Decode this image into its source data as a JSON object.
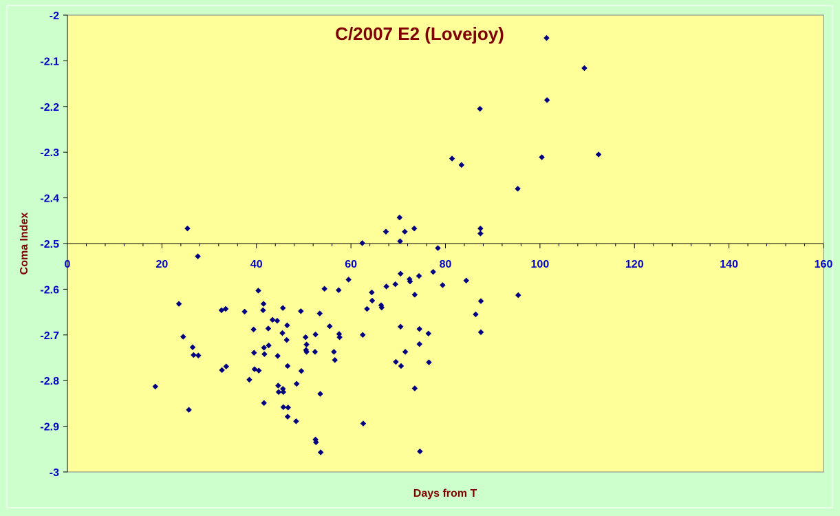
{
  "chart_data": {
    "type": "scatter",
    "title": "C/2007 E2 (Lovejoy)",
    "xlabel": "Days from T",
    "ylabel": "Coma Index",
    "xlim": [
      0,
      160
    ],
    "ylim": [
      -3,
      -2
    ],
    "x_ticks": [
      "0",
      "20",
      "40",
      "60",
      "80",
      "100",
      "120",
      "140",
      "160"
    ],
    "y_ticks": [
      "-2",
      "-2.1",
      "-2.2",
      "-2.3",
      "-2.4",
      "-2.5",
      "-2.6",
      "-2.7",
      "-2.8",
      "-2.9",
      "-3"
    ],
    "x_axis_crosses_at": -2.5,
    "grid": false,
    "legend": "none",
    "colors": {
      "outer_background": "#ccffcc",
      "plot_background": "#ffff99",
      "marker": "#000080",
      "title": "#800000",
      "tick_labels": "#0000cc"
    },
    "points": [
      [
        18.6,
        -2.813
      ],
      [
        23.6,
        -2.632
      ],
      [
        24.5,
        -2.704
      ],
      [
        25.4,
        -2.467
      ],
      [
        25.7,
        -2.864
      ],
      [
        26.5,
        -2.727
      ],
      [
        26.7,
        -2.744
      ],
      [
        27.6,
        -2.528
      ],
      [
        27.7,
        -2.745
      ],
      [
        32.6,
        -2.646
      ],
      [
        32.7,
        -2.777
      ],
      [
        33.5,
        -2.643
      ],
      [
        33.6,
        -2.769
      ],
      [
        37.5,
        -2.649
      ],
      [
        38.5,
        -2.798
      ],
      [
        39.4,
        -2.688
      ],
      [
        39.5,
        -2.739
      ],
      [
        39.6,
        -2.775
      ],
      [
        40.4,
        -2.603
      ],
      [
        40.5,
        -2.778
      ],
      [
        41.4,
        -2.646
      ],
      [
        41.5,
        -2.632
      ],
      [
        41.6,
        -2.728
      ],
      [
        41.7,
        -2.742
      ],
      [
        41.6,
        -2.849
      ],
      [
        42.5,
        -2.686
      ],
      [
        42.6,
        -2.723
      ],
      [
        43.4,
        -2.667
      ],
      [
        44.4,
        -2.669
      ],
      [
        44.5,
        -2.746
      ],
      [
        44.6,
        -2.811
      ],
      [
        44.7,
        -2.825
      ],
      [
        45.5,
        -2.696
      ],
      [
        45.6,
        -2.641
      ],
      [
        45.6,
        -2.818
      ],
      [
        45.7,
        -2.825
      ],
      [
        45.7,
        -2.858
      ],
      [
        46.4,
        -2.711
      ],
      [
        46.5,
        -2.679
      ],
      [
        46.6,
        -2.768
      ],
      [
        46.6,
        -2.879
      ],
      [
        46.7,
        -2.859
      ],
      [
        48.4,
        -2.889
      ],
      [
        48.5,
        -2.807
      ],
      [
        49.4,
        -2.648
      ],
      [
        49.5,
        -2.779
      ],
      [
        50.4,
        -2.705
      ],
      [
        50.5,
        -2.733
      ],
      [
        50.6,
        -2.721
      ],
      [
        50.6,
        -2.737
      ],
      [
        52.4,
        -2.737
      ],
      [
        52.5,
        -2.699
      ],
      [
        52.5,
        -2.929
      ],
      [
        52.6,
        -2.935
      ],
      [
        53.4,
        -2.653
      ],
      [
        53.5,
        -2.829
      ],
      [
        53.6,
        -2.957
      ],
      [
        54.4,
        -2.599
      ],
      [
        55.5,
        -2.681
      ],
      [
        56.4,
        -2.737
      ],
      [
        56.6,
        -2.755
      ],
      [
        57.4,
        -2.602
      ],
      [
        57.5,
        -2.698
      ],
      [
        57.6,
        -2.705
      ],
      [
        59.5,
        -2.579
      ],
      [
        62.4,
        -2.499
      ],
      [
        62.5,
        -2.7
      ],
      [
        62.6,
        -2.894
      ],
      [
        63.4,
        -2.643
      ],
      [
        64.4,
        -2.607
      ],
      [
        64.5,
        -2.625
      ],
      [
        66.4,
        -2.635
      ],
      [
        66.5,
        -2.64
      ],
      [
        67.4,
        -2.474
      ],
      [
        67.5,
        -2.594
      ],
      [
        69.4,
        -2.589
      ],
      [
        69.5,
        -2.759
      ],
      [
        70.3,
        -2.443
      ],
      [
        70.4,
        -2.495
      ],
      [
        70.5,
        -2.566
      ],
      [
        70.5,
        -2.682
      ],
      [
        70.6,
        -2.768
      ],
      [
        71.4,
        -2.474
      ],
      [
        71.5,
        -2.737
      ],
      [
        72.4,
        -2.578
      ],
      [
        72.5,
        -2.583
      ],
      [
        73.4,
        -2.467
      ],
      [
        73.5,
        -2.612
      ],
      [
        73.5,
        -2.817
      ],
      [
        74.4,
        -2.571
      ],
      [
        74.5,
        -2.687
      ],
      [
        74.5,
        -2.72
      ],
      [
        74.6,
        -2.955
      ],
      [
        76.4,
        -2.697
      ],
      [
        76.5,
        -2.76
      ],
      [
        77.4,
        -2.562
      ],
      [
        78.4,
        -2.51
      ],
      [
        79.4,
        -2.591
      ],
      [
        81.4,
        -2.314
      ],
      [
        83.4,
        -2.328
      ],
      [
        84.4,
        -2.581
      ],
      [
        86.4,
        -2.655
      ],
      [
        87.3,
        -2.205
      ],
      [
        87.4,
        -2.467
      ],
      [
        87.4,
        -2.478
      ],
      [
        87.5,
        -2.626
      ],
      [
        87.5,
        -2.694
      ],
      [
        95.3,
        -2.38
      ],
      [
        95.4,
        -2.613
      ],
      [
        100.4,
        -2.311
      ],
      [
        101.4,
        -2.05
      ],
      [
        101.5,
        -2.186
      ],
      [
        109.4,
        -2.116
      ],
      [
        112.4,
        -2.305
      ]
    ]
  }
}
